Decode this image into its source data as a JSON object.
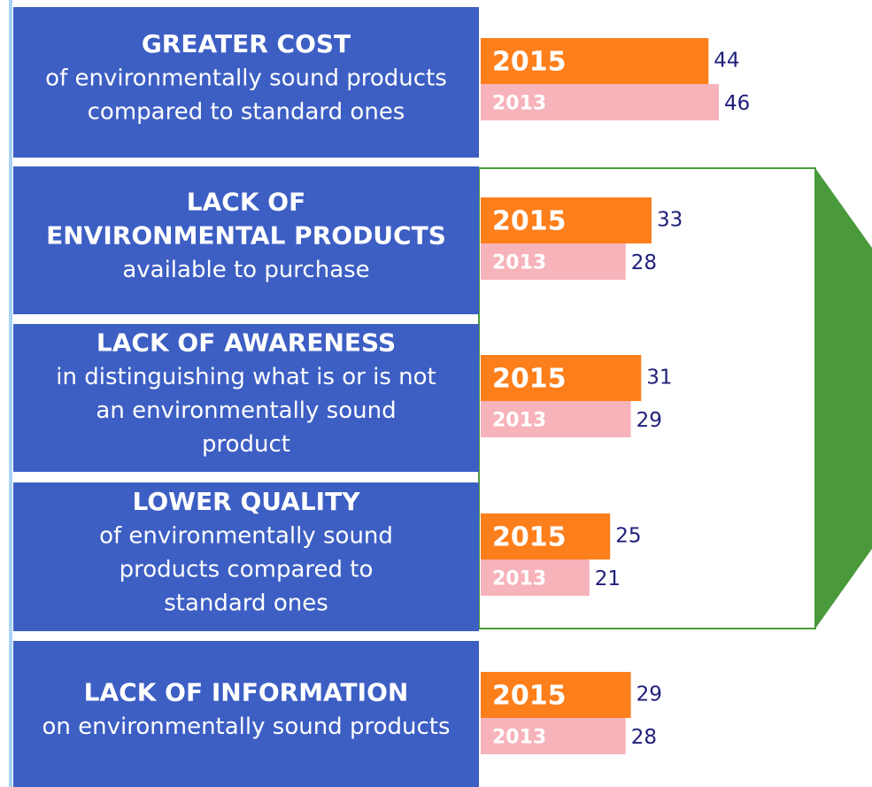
{
  "chart_data": {
    "type": "bar",
    "categories": [
      [
        "GREATER COST"
      ],
      [
        "LACK OF",
        "ENVIRONMENTAL PRODUCTS"
      ],
      [
        "LACK OF AWARENESS"
      ],
      [
        "LOWER QUALITY"
      ],
      [
        "LACK OF INFORMATION"
      ]
    ],
    "descriptions": [
      [
        "of environmentally sound  products",
        "compared to standard ones"
      ],
      [
        "available to purchase"
      ],
      [
        "in distinguishing what is or is not",
        "an environmentally sound",
        "product"
      ],
      [
        "of environmentally sound",
        "products compared to",
        "standard ones"
      ],
      [
        "on environmentally sound products"
      ]
    ],
    "series": [
      {
        "name": "2015",
        "color": "#fd7f1c",
        "values": [
          44,
          33,
          31,
          25,
          29
        ]
      },
      {
        "name": "2013",
        "color": "#f7b3ba",
        "values": [
          46,
          28,
          29,
          21,
          28
        ]
      }
    ]
  }
}
